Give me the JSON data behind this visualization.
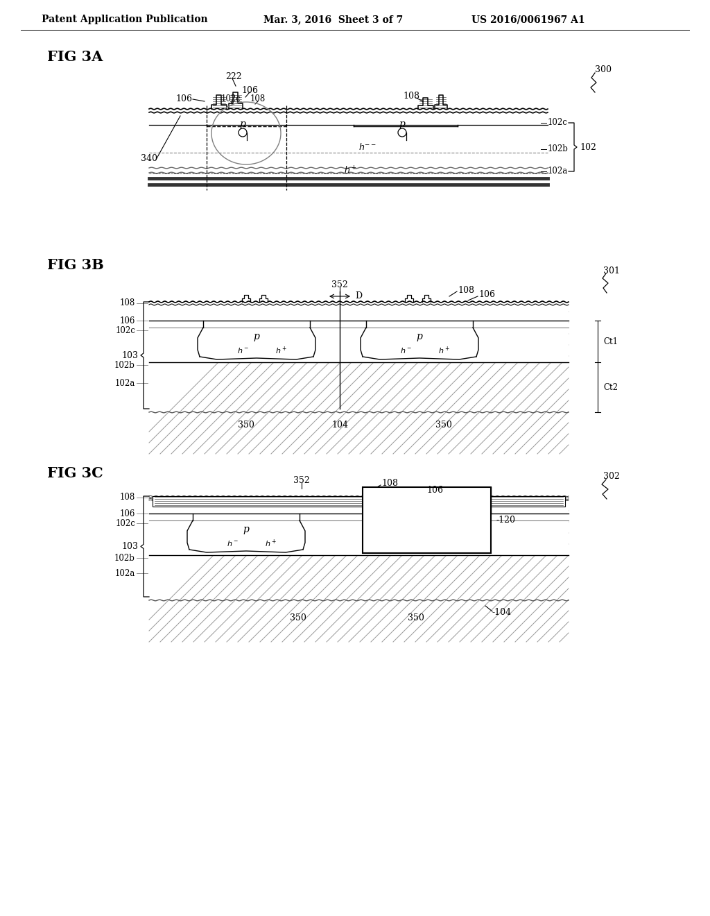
{
  "bg_color": "#ffffff",
  "header_left": "Patent Application Publication",
  "header_mid": "Mar. 3, 2016  Sheet 3 of 7",
  "header_right": "US 2016/0061967 A1"
}
